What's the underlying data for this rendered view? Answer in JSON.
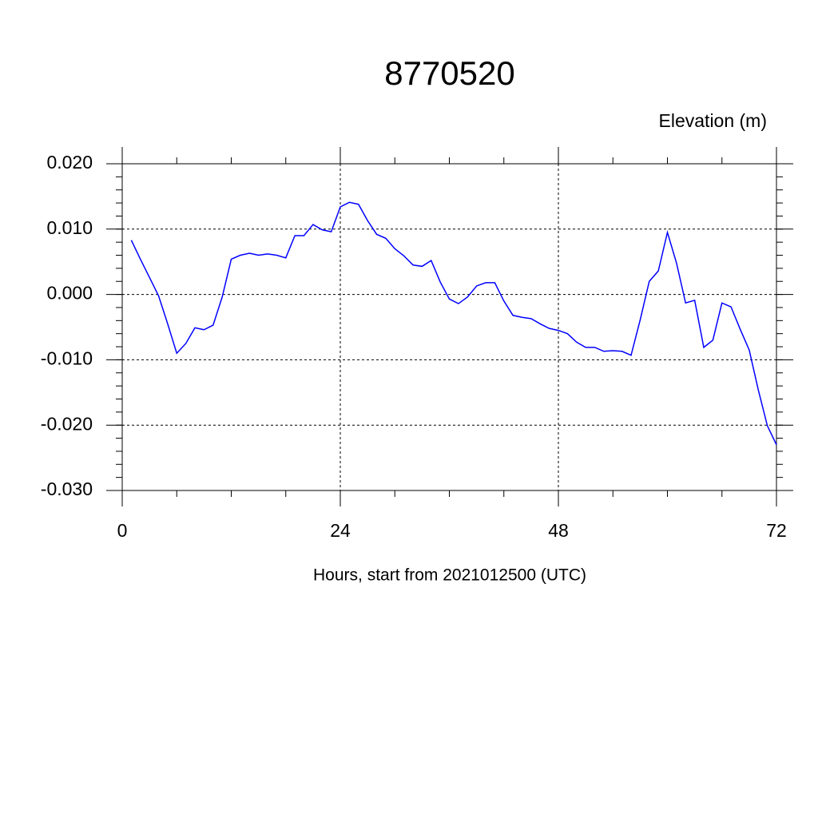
{
  "chart_data": {
    "type": "line",
    "title": "8770520",
    "y_label": "Elevation (m)",
    "x_label": "Hours, start from 2021012500 (UTC)",
    "x": [
      1,
      2,
      3,
      4,
      5,
      6,
      7,
      8,
      9,
      10,
      11,
      12,
      13,
      14,
      15,
      16,
      17,
      18,
      19,
      20,
      21,
      22,
      23,
      24,
      25,
      26,
      27,
      28,
      29,
      30,
      31,
      32,
      33,
      34,
      35,
      36,
      37,
      38,
      39,
      40,
      41,
      42,
      43,
      44,
      45,
      46,
      47,
      48,
      49,
      50,
      51,
      52,
      53,
      54,
      55,
      56,
      57,
      58,
      59,
      60,
      61,
      62,
      63,
      64,
      65,
      66,
      67,
      68,
      69,
      70,
      71,
      72
    ],
    "values": [
      0.0083,
      0.0054,
      0.0026,
      -0.0002,
      -0.0045,
      -0.009,
      -0.0075,
      -0.0051,
      -0.0054,
      -0.0047,
      -0.0004,
      0.0054,
      0.006,
      0.0063,
      0.006,
      0.0062,
      0.006,
      0.0056,
      0.009,
      0.009,
      0.0107,
      0.0099,
      0.0096,
      0.0134,
      0.0141,
      0.0138,
      0.0113,
      0.0092,
      0.0086,
      0.007,
      0.0059,
      0.0045,
      0.0043,
      0.0052,
      0.0019,
      -0.0007,
      -0.0014,
      -0.0004,
      0.0013,
      0.0018,
      0.0018,
      -0.001,
      -0.0032,
      -0.0035,
      -0.0037,
      -0.0045,
      -0.0052,
      -0.0055,
      -0.006,
      -0.0073,
      -0.0081,
      -0.0081,
      -0.0087,
      -0.0086,
      -0.0087,
      -0.0093,
      -0.0039,
      0.002,
      0.0036,
      0.0095,
      0.0048,
      -0.0013,
      -0.0009,
      -0.0081,
      -0.007,
      -0.0013,
      -0.0019,
      -0.0053,
      -0.0085,
      -0.0146,
      -0.0201,
      -0.023
    ],
    "color": "#0000ff",
    "xlim": [
      0,
      72
    ],
    "xticks": [
      0,
      24,
      48,
      72
    ],
    "ylim": [
      -0.03,
      0.02
    ],
    "yticks": [
      {
        "value": 0.02,
        "label": "0.020"
      },
      {
        "value": 0.01,
        "label": "0.010"
      },
      {
        "value": 0,
        "label": "0.000"
      },
      {
        "value": -0.01,
        "label": "-0.010"
      },
      {
        "value": -0.02,
        "label": "-0.020"
      },
      {
        "value": -0.03,
        "label": "-0.030"
      }
    ],
    "grid": true
  }
}
